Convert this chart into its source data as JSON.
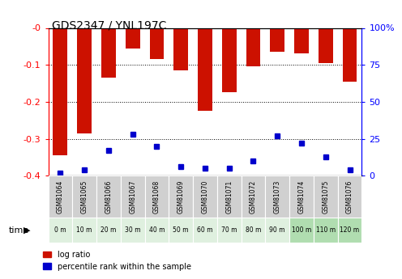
{
  "title": "GDS2347 / YNL197C",
  "samples": [
    "GSM81064",
    "GSM81065",
    "GSM81066",
    "GSM81067",
    "GSM81068",
    "GSM81069",
    "GSM81070",
    "GSM81071",
    "GSM81072",
    "GSM81073",
    "GSM81074",
    "GSM81075",
    "GSM81076"
  ],
  "time_labels": [
    "0 m",
    "10 m",
    "20 m",
    "30 m",
    "40 m",
    "50 m",
    "60 m",
    "70 m",
    "80 m",
    "90 m",
    "100 m",
    "110 m",
    "120 m"
  ],
  "log_ratios": [
    -0.345,
    -0.285,
    -0.135,
    -0.055,
    -0.085,
    -0.115,
    -0.225,
    -0.175,
    -0.105,
    -0.065,
    -0.07,
    -0.095,
    -0.145
  ],
  "percentile_ranks": [
    2,
    4,
    17,
    28,
    20,
    6,
    5,
    5,
    10,
    27,
    22,
    13,
    4
  ],
  "bar_color": "#cc1100",
  "dot_color": "#0000cc",
  "ylim_left": [
    -0.4,
    0
  ],
  "ylim_right": [
    0,
    100
  ],
  "yticks_left": [
    -0.4,
    -0.3,
    -0.2,
    -0.1,
    0
  ],
  "yticks_right": [
    0,
    25,
    50,
    75,
    100
  ],
  "ytick_labels_left": [
    "-0.4",
    "-0.3",
    "-0.2",
    "-0.1",
    "-0"
  ],
  "ytick_labels_right": [
    "0",
    "25",
    "50",
    "75",
    "100%"
  ],
  "bg_color_gsm": "#d0d0d0",
  "light_green": "#dff0df",
  "mid_green": "#b0ddb0"
}
